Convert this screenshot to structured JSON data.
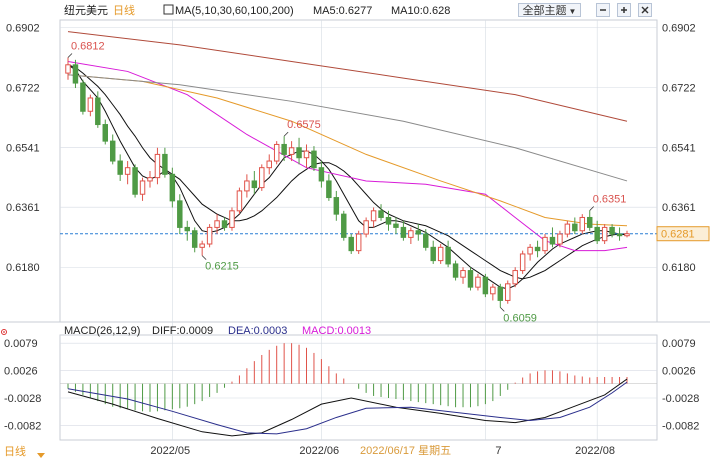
{
  "header": {
    "instrument": "纽元美元",
    "period": "日线",
    "ma_legend": "MA(5,10,30,60,100,200)",
    "ma5_text": "MA5:0.6277",
    "ma10_text": "MA10:0.628",
    "theme_button": "全部主题",
    "theme_arrow": "▼"
  },
  "macd_header": {
    "params": "MACD(26,12,9)",
    "diff_text": "DIFF:0.0009",
    "dea_text": "DEA:0.0003",
    "macd_text": "MACD:0.0013"
  },
  "footer": {
    "period": "日线",
    "cursor_date": "2022/06/17 星期五"
  },
  "colors": {
    "up": "#e0534a",
    "down": "#4f9a45",
    "ma_black": "#111111",
    "ma_magenta": "#d81bd8",
    "ma_orange": "#e59a2a",
    "ma_gray": "#8a8a8a",
    "ma_brown": "#b04a3a",
    "current": "#2a7fd4",
    "grid": "#d6dbe3",
    "dea": "#2b2f8c"
  },
  "chart_data": {
    "type": "candlestick",
    "price_axis_ticks": [
      "0.6902",
      "0.6722",
      "0.6541",
      "0.6361",
      "0.6180"
    ],
    "macd_axis_ticks": [
      "0.0079",
      "0.0026",
      "-0.0028",
      "-0.0082"
    ],
    "x_ticks": [
      "2022/05",
      "2022/06",
      "2022/07",
      "2022/08"
    ],
    "x_tick_texts": [
      "2022/05",
      "2022/06",
      "7",
      "2022/08"
    ],
    "price_range": [
      0.6015,
      0.6925
    ],
    "macd_range": [
      -0.011,
      0.0095
    ],
    "current_price": 0.6281,
    "current_price_label": "0.6281",
    "annotations": [
      {
        "text": "0.6812",
        "price": 0.6812
      },
      {
        "text": "0.6575",
        "price": 0.6575
      },
      {
        "text": "0.6215",
        "price": 0.6215
      },
      {
        "text": "0.6059",
        "price": 0.6059
      },
      {
        "text": "0.6351",
        "price": 0.6351
      }
    ],
    "ohlc": [
      [
        0.6765,
        0.6812,
        0.6745,
        0.679
      ],
      [
        0.679,
        0.6805,
        0.672,
        0.6735
      ],
      [
        0.6735,
        0.6745,
        0.664,
        0.665
      ],
      [
        0.665,
        0.67,
        0.6635,
        0.669
      ],
      [
        0.669,
        0.671,
        0.66,
        0.661
      ],
      [
        0.661,
        0.6625,
        0.655,
        0.656
      ],
      [
        0.656,
        0.658,
        0.649,
        0.65
      ],
      [
        0.65,
        0.652,
        0.644,
        0.646
      ],
      [
        0.646,
        0.65,
        0.643,
        0.648
      ],
      [
        0.648,
        0.649,
        0.639,
        0.64
      ],
      [
        0.64,
        0.645,
        0.638,
        0.644
      ],
      [
        0.644,
        0.647,
        0.642,
        0.645
      ],
      [
        0.645,
        0.654,
        0.643,
        0.652
      ],
      [
        0.652,
        0.654,
        0.645,
        0.646
      ],
      [
        0.646,
        0.648,
        0.636,
        0.638
      ],
      [
        0.638,
        0.64,
        0.628,
        0.63
      ],
      [
        0.63,
        0.632,
        0.626,
        0.629
      ],
      [
        0.629,
        0.63,
        0.6225,
        0.624
      ],
      [
        0.624,
        0.626,
        0.6215,
        0.625
      ],
      [
        0.625,
        0.631,
        0.624,
        0.63
      ],
      [
        0.63,
        0.634,
        0.628,
        0.632
      ],
      [
        0.632,
        0.633,
        0.629,
        0.63
      ],
      [
        0.63,
        0.636,
        0.629,
        0.635
      ],
      [
        0.635,
        0.642,
        0.634,
        0.641
      ],
      [
        0.641,
        0.646,
        0.639,
        0.644
      ],
      [
        0.644,
        0.647,
        0.64,
        0.642
      ],
      [
        0.642,
        0.649,
        0.641,
        0.648
      ],
      [
        0.648,
        0.652,
        0.646,
        0.65
      ],
      [
        0.65,
        0.656,
        0.649,
        0.655
      ],
      [
        0.655,
        0.6575,
        0.65,
        0.652
      ],
      [
        0.652,
        0.656,
        0.65,
        0.654
      ],
      [
        0.654,
        0.657,
        0.649,
        0.651
      ],
      [
        0.651,
        0.655,
        0.648,
        0.653
      ],
      [
        0.653,
        0.6545,
        0.647,
        0.648
      ],
      [
        0.648,
        0.65,
        0.642,
        0.644
      ],
      [
        0.644,
        0.646,
        0.638,
        0.639
      ],
      [
        0.639,
        0.641,
        0.632,
        0.634
      ],
      [
        0.634,
        0.635,
        0.626,
        0.627
      ],
      [
        0.627,
        0.628,
        0.622,
        0.623
      ],
      [
        0.623,
        0.629,
        0.622,
        0.628
      ],
      [
        0.628,
        0.633,
        0.627,
        0.632
      ],
      [
        0.632,
        0.636,
        0.63,
        0.635
      ],
      [
        0.635,
        0.637,
        0.632,
        0.633
      ],
      [
        0.633,
        0.635,
        0.629,
        0.631
      ],
      [
        0.631,
        0.633,
        0.628,
        0.63
      ],
      [
        0.63,
        0.632,
        0.626,
        0.627
      ],
      [
        0.627,
        0.63,
        0.625,
        0.629
      ],
      [
        0.629,
        0.631,
        0.626,
        0.628
      ],
      [
        0.628,
        0.6295,
        0.623,
        0.624
      ],
      [
        0.624,
        0.626,
        0.619,
        0.62
      ],
      [
        0.62,
        0.625,
        0.619,
        0.624
      ],
      [
        0.624,
        0.626,
        0.618,
        0.619
      ],
      [
        0.619,
        0.62,
        0.614,
        0.615
      ],
      [
        0.615,
        0.618,
        0.613,
        0.617
      ],
      [
        0.617,
        0.618,
        0.611,
        0.612
      ],
      [
        0.612,
        0.616,
        0.611,
        0.615
      ],
      [
        0.615,
        0.616,
        0.609,
        0.61
      ],
      [
        0.61,
        0.613,
        0.608,
        0.612
      ],
      [
        0.612,
        0.613,
        0.6059,
        0.608
      ],
      [
        0.608,
        0.614,
        0.607,
        0.613
      ],
      [
        0.613,
        0.618,
        0.612,
        0.617
      ],
      [
        0.617,
        0.623,
        0.616,
        0.622
      ],
      [
        0.622,
        0.625,
        0.62,
        0.624
      ],
      [
        0.624,
        0.626,
        0.621,
        0.623
      ],
      [
        0.623,
        0.628,
        0.622,
        0.627
      ],
      [
        0.627,
        0.63,
        0.624,
        0.625
      ],
      [
        0.625,
        0.629,
        0.624,
        0.628
      ],
      [
        0.628,
        0.632,
        0.627,
        0.631
      ],
      [
        0.631,
        0.633,
        0.628,
        0.629
      ],
      [
        0.629,
        0.634,
        0.628,
        0.633
      ],
      [
        0.633,
        0.6351,
        0.629,
        0.63
      ],
      [
        0.63,
        0.632,
        0.625,
        0.626
      ],
      [
        0.626,
        0.631,
        0.625,
        0.63
      ],
      [
        0.63,
        0.631,
        0.627,
        0.628
      ],
      [
        0.628,
        0.63,
        0.626,
        0.6275
      ],
      [
        0.6275,
        0.629,
        0.627,
        0.6281
      ]
    ],
    "ma_series": [
      {
        "name": "MA5",
        "color": "#111111",
        "values": [
          0.679,
          0.6775,
          0.674,
          0.6715,
          0.669,
          0.665,
          0.6605,
          0.656,
          0.652,
          0.648,
          0.6455,
          0.6445,
          0.6455,
          0.647,
          0.6455,
          0.642,
          0.637,
          0.632,
          0.629,
          0.6285,
          0.629,
          0.63,
          0.632,
          0.634,
          0.637,
          0.64,
          0.643,
          0.645,
          0.648,
          0.651,
          0.652,
          0.653,
          0.653,
          0.652,
          0.65,
          0.6475,
          0.644,
          0.64,
          0.636,
          0.632,
          0.63,
          0.63,
          0.631,
          0.632,
          0.632,
          0.6315,
          0.6305,
          0.6295,
          0.6285,
          0.627,
          0.6255,
          0.624,
          0.622,
          0.62,
          0.618,
          0.6165,
          0.615,
          0.6135,
          0.612,
          0.6115,
          0.6125,
          0.6145,
          0.617,
          0.6195,
          0.6215,
          0.6235,
          0.625,
          0.626,
          0.627,
          0.628,
          0.6285,
          0.629,
          0.629,
          0.6285,
          0.628,
          0.6277
        ]
      },
      {
        "name": "MA10",
        "color": "#111111",
        "values": [
          0.679,
          0.6782,
          0.6765,
          0.6745,
          0.6725,
          0.67,
          0.667,
          0.664,
          0.6605,
          0.6575,
          0.654,
          0.651,
          0.649,
          0.6475,
          0.646,
          0.6445,
          0.642,
          0.6395,
          0.637,
          0.6355,
          0.634,
          0.633,
          0.632,
          0.632,
          0.6325,
          0.6335,
          0.635,
          0.637,
          0.639,
          0.6415,
          0.644,
          0.646,
          0.6475,
          0.649,
          0.6495,
          0.6495,
          0.6485,
          0.647,
          0.645,
          0.6425,
          0.64,
          0.6375,
          0.6355,
          0.634,
          0.633,
          0.632,
          0.6315,
          0.631,
          0.6305,
          0.6295,
          0.6285,
          0.6275,
          0.626,
          0.6245,
          0.623,
          0.6215,
          0.62,
          0.6185,
          0.617,
          0.616,
          0.615,
          0.6145,
          0.615,
          0.616,
          0.617,
          0.6185,
          0.62,
          0.6215,
          0.623,
          0.6245,
          0.6255,
          0.6265,
          0.6272,
          0.6277,
          0.628,
          0.628
        ]
      },
      {
        "name": "MA30",
        "color": "#d81bd8",
        "points": [
          [
            0,
            0.68
          ],
          [
            8,
            0.677
          ],
          [
            16,
            0.67
          ],
          [
            24,
            0.658
          ],
          [
            32,
            0.648
          ],
          [
            40,
            0.644
          ],
          [
            48,
            0.643
          ],
          [
            56,
            0.64
          ],
          [
            60,
            0.633
          ],
          [
            64,
            0.626
          ],
          [
            68,
            0.623
          ],
          [
            72,
            0.623
          ],
          [
            75,
            0.624
          ]
        ]
      },
      {
        "name": "MA60",
        "color": "#e59a2a",
        "points": [
          [
            0,
            0.676
          ],
          [
            10,
            0.674
          ],
          [
            20,
            0.669
          ],
          [
            30,
            0.662
          ],
          [
            40,
            0.652
          ],
          [
            50,
            0.644
          ],
          [
            58,
            0.638
          ],
          [
            64,
            0.633
          ],
          [
            70,
            0.631
          ],
          [
            75,
            0.6305
          ]
        ]
      },
      {
        "name": "MA100",
        "color": "#8a8a8a",
        "points": [
          [
            0,
            0.676
          ],
          [
            15,
            0.673
          ],
          [
            30,
            0.668
          ],
          [
            45,
            0.662
          ],
          [
            60,
            0.654
          ],
          [
            75,
            0.644
          ]
        ]
      },
      {
        "name": "MA200",
        "color": "#b04a3a",
        "points": [
          [
            0,
            0.689
          ],
          [
            15,
            0.685
          ],
          [
            30,
            0.68
          ],
          [
            45,
            0.675
          ],
          [
            60,
            0.67
          ],
          [
            75,
            0.662
          ]
        ]
      }
    ],
    "macd_hist": [
      -0.001,
      -0.0016,
      -0.0022,
      -0.0028,
      -0.0034,
      -0.004,
      -0.0045,
      -0.0048,
      -0.005,
      -0.0052,
      -0.0054,
      -0.0055,
      -0.0054,
      -0.0052,
      -0.005,
      -0.0048,
      -0.0045,
      -0.004,
      -0.0034,
      -0.0026,
      -0.0018,
      -0.0008,
      0.0004,
      0.0016,
      0.003,
      0.0044,
      0.0056,
      0.0066,
      0.0074,
      0.0079,
      0.0079,
      0.0076,
      0.007,
      0.006,
      0.0048,
      0.0034,
      0.002,
      0.001,
      0.0,
      -0.001,
      -0.0018,
      -0.0024,
      -0.0026,
      -0.0028,
      -0.003,
      -0.0032,
      -0.0034,
      -0.0036,
      -0.0038,
      -0.004,
      -0.0042,
      -0.0044,
      -0.0046,
      -0.0046,
      -0.0046,
      -0.0044,
      -0.004,
      -0.0034,
      -0.0024,
      -0.0012,
      0.0002,
      0.0012,
      0.002,
      0.0024,
      0.0026,
      0.0026,
      0.0024,
      0.002,
      0.0016,
      0.0014,
      0.0012,
      0.0013,
      0.0013,
      0.0013,
      0.0013,
      0.0013
    ],
    "macd_diff_points": [
      [
        0,
        -0.0016
      ],
      [
        6,
        -0.004
      ],
      [
        12,
        -0.0068
      ],
      [
        18,
        -0.0094
      ],
      [
        22,
        -0.0102
      ],
      [
        26,
        -0.0096
      ],
      [
        30,
        -0.007
      ],
      [
        34,
        -0.004
      ],
      [
        38,
        -0.0028
      ],
      [
        44,
        -0.0046
      ],
      [
        50,
        -0.0058
      ],
      [
        56,
        -0.0072
      ],
      [
        60,
        -0.0076
      ],
      [
        64,
        -0.0066
      ],
      [
        68,
        -0.0044
      ],
      [
        72,
        -0.0022
      ],
      [
        75,
        0.0009
      ]
    ],
    "macd_dea_points": [
      [
        0,
        -0.001
      ],
      [
        8,
        -0.003
      ],
      [
        14,
        -0.0054
      ],
      [
        20,
        -0.008
      ],
      [
        24,
        -0.0096
      ],
      [
        28,
        -0.0098
      ],
      [
        32,
        -0.0088
      ],
      [
        36,
        -0.0066
      ],
      [
        40,
        -0.0048
      ],
      [
        46,
        -0.0046
      ],
      [
        52,
        -0.0056
      ],
      [
        58,
        -0.0066
      ],
      [
        62,
        -0.0072
      ],
      [
        66,
        -0.0066
      ],
      [
        70,
        -0.0046
      ],
      [
        73,
        -0.0018
      ],
      [
        75,
        0.0003
      ]
    ]
  }
}
